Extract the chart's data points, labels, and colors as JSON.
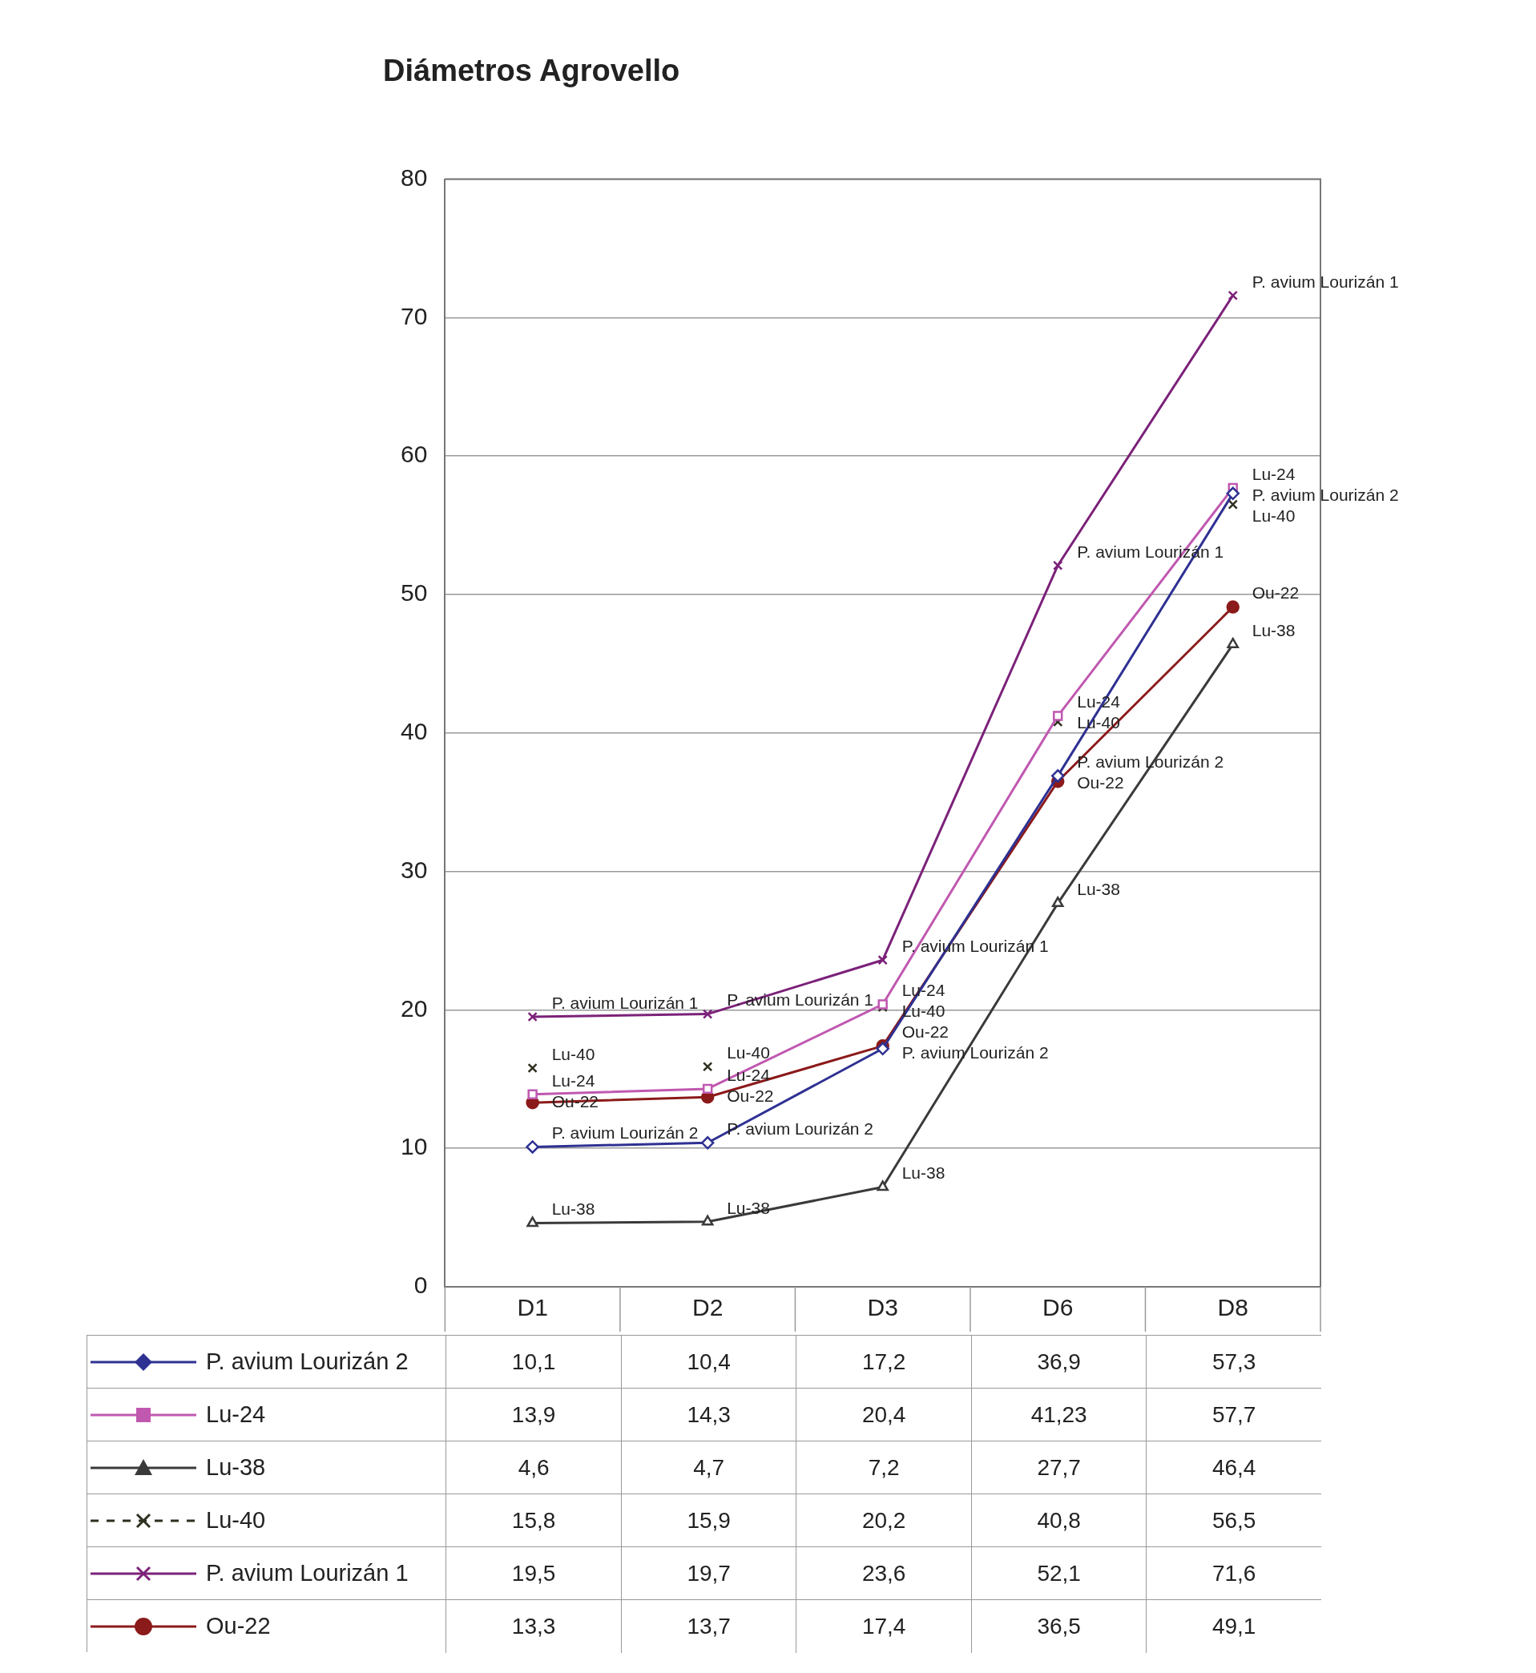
{
  "chart_data": {
    "type": "line",
    "title": "Diámetros Agrovello",
    "categories": [
      "D1",
      "D2",
      "D3",
      "D6",
      "D8"
    ],
    "ylim": [
      0,
      80
    ],
    "yticks": [
      0,
      10,
      20,
      30,
      40,
      50,
      60,
      70,
      80
    ],
    "grid": "y",
    "legend": "bottom",
    "series": [
      {
        "name": "P. avium Lourizán 2",
        "color": "#2e3192",
        "marker": "diamond",
        "values": [
          10.1,
          10.4,
          17.2,
          36.9,
          57.3
        ],
        "value_labels": [
          "10,1",
          "10,4",
          "17,2",
          "36,9",
          "57,3"
        ]
      },
      {
        "name": "Lu-24",
        "color": "#c058b0",
        "marker": "square",
        "values": [
          13.9,
          14.3,
          20.4,
          41.23,
          57.7
        ],
        "value_labels": [
          "13,9",
          "14,3",
          "20,4",
          "41,23",
          "57,7"
        ]
      },
      {
        "name": "Lu-38",
        "color": "#3a3a3a",
        "marker": "triangle",
        "values": [
          4.6,
          4.7,
          7.2,
          27.7,
          46.4
        ],
        "value_labels": [
          "4,6",
          "4,7",
          "7,2",
          "27,7",
          "46,4"
        ]
      },
      {
        "name": "Lu-40",
        "type": "scatter",
        "color": "#2f3020",
        "marker": "cross",
        "values": [
          15.8,
          15.9,
          20.2,
          40.8,
          56.5
        ],
        "value_labels": [
          "15,8",
          "15,9",
          "20,2",
          "40,8",
          "56,5"
        ]
      },
      {
        "name": "P. avium Lourizán 1",
        "color": "#7b2179",
        "marker": "cross",
        "values": [
          19.5,
          19.7,
          23.6,
          52.1,
          71.6
        ],
        "value_labels": [
          "19,5",
          "19,7",
          "23,6",
          "52,1",
          "71,6"
        ]
      },
      {
        "name": "Ou-22",
        "color": "#8b1a1a",
        "marker": "circle",
        "values": [
          13.3,
          13.7,
          17.4,
          36.5,
          49.1
        ],
        "value_labels": [
          "13,3",
          "13,7",
          "17,4",
          "36,5",
          "49,1"
        ]
      }
    ]
  }
}
